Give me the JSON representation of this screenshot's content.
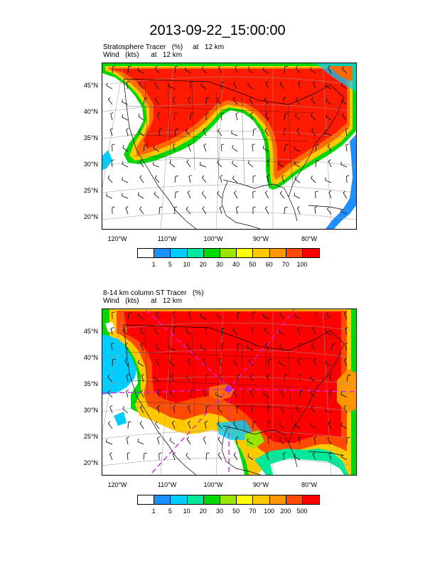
{
  "title": "2013-09-22_15:00:00",
  "panels": [
    {
      "label_line1": "Stratosphere Tracer   (%)     at   12 km",
      "label_line2": "Wind   (kts)      at   12 km",
      "lat_ticks": [
        "45°N",
        "40°N",
        "35°N",
        "30°N",
        "25°N",
        "20°N"
      ],
      "lon_ticks": [
        "120°W",
        "110°W",
        "100°W",
        "90°W",
        "80°W"
      ],
      "colorbar_labels": [
        "1",
        "5",
        "10",
        "20",
        "30",
        "40",
        "50",
        "60",
        "70",
        "100"
      ],
      "colorbar_colors": [
        "#ffffff",
        "#1e8fff",
        "#00cdff",
        "#00e89a",
        "#00d800",
        "#9ae600",
        "#ffff00",
        "#ffc800",
        "#ff9600",
        "#ff4b00",
        "#ff0000"
      ]
    },
    {
      "label_line1": "8-14 km column ST Tracer   (%)",
      "label_line2": "Wind   (kts)      at   12 km",
      "lat_ticks": [
        "45°N",
        "40°N",
        "35°N",
        "30°N",
        "25°N",
        "20°N"
      ],
      "lon_ticks": [
        "120°W",
        "110°W",
        "100°W",
        "90°W",
        "80°W"
      ],
      "colorbar_labels": [
        "1",
        "5",
        "10",
        "20",
        "30",
        "50",
        "70",
        "100",
        "200",
        "500"
      ],
      "colorbar_colors": [
        "#ffffff",
        "#1e8fff",
        "#00cdff",
        "#00e89a",
        "#00d800",
        "#9ae600",
        "#ffff00",
        "#ffc800",
        "#ff9600",
        "#ff4b00",
        "#ff0000"
      ]
    }
  ]
}
